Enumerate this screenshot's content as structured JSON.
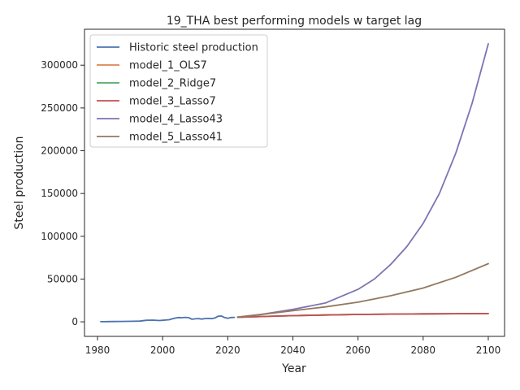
{
  "chart_data": {
    "type": "line",
    "title": "19_THA best performing models w target lag",
    "xlabel": "Year",
    "ylabel": "Steel production",
    "xlim": [
      1976,
      2105
    ],
    "ylim": [
      -17000,
      342000
    ],
    "xticks": [
      1980,
      2000,
      2020,
      2040,
      2060,
      2080,
      2100
    ],
    "yticks": [
      0,
      50000,
      100000,
      150000,
      200000,
      250000,
      300000
    ],
    "grid": false,
    "legend_position": "upper left",
    "series": [
      {
        "name": "Historic steel production",
        "color": "#4c72b0",
        "x": [
          1981,
          1983,
          1985,
          1987,
          1989,
          1991,
          1993,
          1995,
          1997,
          1999,
          2000,
          2002,
          2003,
          2004,
          2005,
          2006,
          2007,
          2008,
          2009,
          2010,
          2011,
          2012,
          2013,
          2014,
          2015,
          2016,
          2017,
          2018,
          2019,
          2020,
          2021,
          2022
        ],
        "y": [
          200,
          300,
          400,
          500,
          600,
          700,
          900,
          1800,
          2000,
          1500,
          1800,
          2500,
          3500,
          4500,
          5000,
          4800,
          5200,
          4800,
          3000,
          3500,
          3800,
          3200,
          3800,
          4000,
          3700,
          4500,
          6500,
          6800,
          5000,
          4200,
          5000,
          5200
        ]
      },
      {
        "name": "model_1_OLS7",
        "color": "#dd8452",
        "x": [
          2023,
          2030,
          2040,
          2050,
          2060,
          2070,
          2080,
          2090,
          2100
        ],
        "y": [
          5300,
          6200,
          7200,
          8000,
          8600,
          9000,
          9300,
          9500,
          9700
        ]
      },
      {
        "name": "model_2_Ridge7",
        "color": "#55a868",
        "x": [
          2023,
          2030,
          2040,
          2050,
          2060,
          2070,
          2080,
          2090,
          2100
        ],
        "y": [
          5300,
          6200,
          7200,
          8000,
          8600,
          9000,
          9300,
          9500,
          9700
        ]
      },
      {
        "name": "model_3_Lasso7",
        "color": "#c44e52",
        "x": [
          2023,
          2030,
          2040,
          2050,
          2060,
          2070,
          2080,
          2090,
          2100
        ],
        "y": [
          5300,
          6200,
          7200,
          8000,
          8600,
          9000,
          9300,
          9500,
          9700
        ]
      },
      {
        "name": "model_4_Lasso43",
        "color": "#8172b3",
        "x": [
          2023,
          2030,
          2040,
          2050,
          2060,
          2065,
          2070,
          2075,
          2080,
          2085,
          2090,
          2095,
          2100
        ],
        "y": [
          5500,
          8500,
          14500,
          22000,
          38000,
          50000,
          67000,
          88000,
          115000,
          150000,
          197000,
          255000,
          325000
        ]
      },
      {
        "name": "model_5_Lasso41",
        "color": "#937860",
        "x": [
          2023,
          2030,
          2040,
          2050,
          2060,
          2070,
          2080,
          2090,
          2100
        ],
        "y": [
          5500,
          8500,
          13000,
          17500,
          23000,
          30500,
          39500,
          52000,
          68000
        ]
      }
    ]
  }
}
